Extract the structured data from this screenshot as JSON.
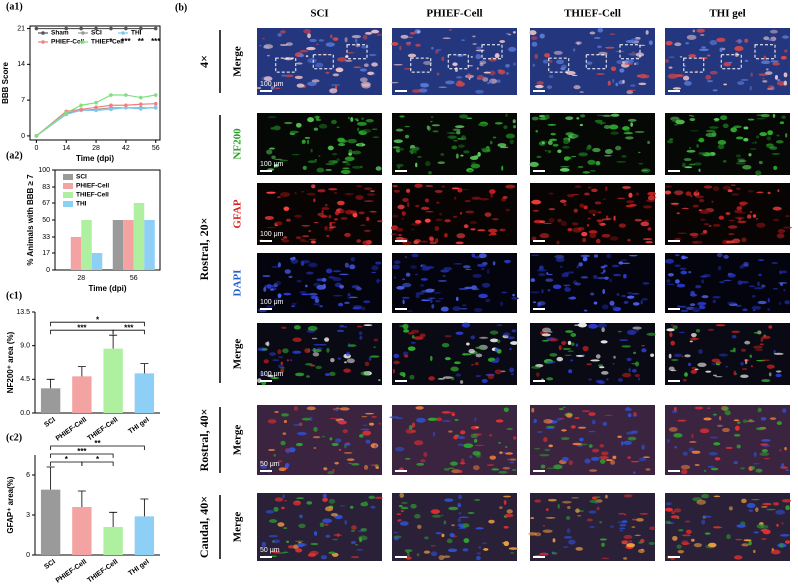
{
  "chart_data": [
    {
      "type": "line",
      "panel": "(a1)",
      "xlabel": "Time (dpi)",
      "ylabel": "BBB Score",
      "x": [
        0,
        14,
        21,
        28,
        35,
        42,
        49,
        56
      ],
      "xlim": [
        -3,
        58
      ],
      "xticks": [
        0,
        14,
        28,
        42,
        56
      ],
      "ylim": [
        -0.8,
        21.5
      ],
      "yticks": [
        0,
        7,
        14,
        21
      ],
      "legend": "inside-top",
      "series": [
        {
          "name": "Sham",
          "color": "#555555",
          "values": [
            21,
            21,
            21,
            21,
            21,
            21,
            21,
            21
          ]
        },
        {
          "name": "SCI",
          "color": "#9a9a9a",
          "values": [
            0,
            4.5,
            5,
            5.2,
            5.5,
            5.5,
            5.5,
            5.5
          ]
        },
        {
          "name": "THI",
          "color": "#7ec8f0",
          "values": [
            0,
            4.2,
            5,
            5,
            5.2,
            5.5,
            5.3,
            5.6
          ]
        },
        {
          "name": "PHIEF-Cell",
          "color": "#f08080",
          "values": [
            0,
            4.8,
            5.2,
            5.6,
            6,
            6,
            6.2,
            6.3
          ]
        },
        {
          "name": "THIEF-Cell",
          "color": "#7fe07f",
          "values": [
            0,
            4.5,
            6,
            6.5,
            8,
            8,
            7.5,
            8
          ]
        }
      ],
      "annotations": [
        {
          "x": 35,
          "text": "*"
        },
        {
          "x": 42,
          "text": "***"
        },
        {
          "x": 49,
          "text": "**"
        },
        {
          "x": 56,
          "text": "***"
        }
      ]
    },
    {
      "type": "bar",
      "panel": "(a2)",
      "xlabel": "Time (dpi)",
      "ylabel": "% Animals with BBB ≥ 7",
      "categories": [
        "28",
        "56"
      ],
      "ylim": [
        0,
        100
      ],
      "yticks": [
        0,
        17,
        33,
        50,
        67,
        83,
        100
      ],
      "legend": "top-left",
      "series": [
        {
          "name": "SCI",
          "color": "#9a9a9a",
          "values": [
            0,
            50
          ]
        },
        {
          "name": "PHIEF-Cell",
          "color": "#f4a3a3",
          "values": [
            33,
            50
          ]
        },
        {
          "name": "THIEF-Cell",
          "color": "#aef0a0",
          "values": [
            50,
            67
          ]
        },
        {
          "name": "THI",
          "color": "#8dcff5",
          "values": [
            17,
            50
          ]
        }
      ]
    },
    {
      "type": "bar",
      "panel": "(c1)",
      "ylabel": "NF200⁺ area (%)",
      "categories": [
        "SCI",
        "PHIEF-Cell",
        "THIEF-Cell",
        "THI gel"
      ],
      "values": [
        3.3,
        4.9,
        8.6,
        5.3
      ],
      "errors": [
        1.2,
        1.3,
        1.8,
        1.3
      ],
      "colors": [
        "#9a9a9a",
        "#f4a3a3",
        "#aef0a0",
        "#8dcff5"
      ],
      "ylim": [
        0,
        13.5
      ],
      "yticks": [
        {
          "value": 0,
          "label": "0.0"
        },
        4.5,
        {
          "value": 9,
          "label": "9.0"
        },
        13.5
      ],
      "annotations": [
        {
          "text": "*",
          "between": [
            "SCI",
            "THI gel"
          ]
        },
        {
          "text": "***",
          "between": [
            "SCI",
            "THIEF-Cell"
          ]
        },
        {
          "text": "***",
          "between": [
            "THIEF-Cell",
            "THI gel"
          ]
        }
      ]
    },
    {
      "type": "bar",
      "panel": "(c2)",
      "ylabel": "GFAP⁺ area(%)",
      "categories": [
        "SCI",
        "PHIEF-Cell",
        "THIEF-Cell",
        "THI gel"
      ],
      "values": [
        4.9,
        3.6,
        2.1,
        2.9
      ],
      "errors": [
        1.7,
        1.2,
        1.1,
        1.3
      ],
      "colors": [
        "#9a9a9a",
        "#f4a3a3",
        "#aef0a0",
        "#8dcff5"
      ],
      "ylim": [
        0,
        7.5
      ],
      "yticks": [
        0,
        3,
        6
      ],
      "annotations": [
        {
          "text": "**",
          "between": [
            "SCI",
            "THI gel"
          ]
        },
        {
          "text": "***",
          "between": [
            "SCI",
            "THIEF-Cell"
          ]
        },
        {
          "text": "*",
          "between": [
            "SCI",
            "PHIEF-Cell"
          ]
        },
        {
          "text": "*",
          "between": [
            "PHIEF-Cell",
            "THIEF-Cell"
          ]
        }
      ]
    }
  ],
  "panel_b": {
    "label": "(b)",
    "columns": [
      "SCI",
      "PHIEF-Cell",
      "THIEF-Cell",
      "THI gel"
    ],
    "row_groups": [
      {
        "label": "4×",
        "rows": [
          {
            "label": "Merge",
            "color": "#000000",
            "scale": "100 μm"
          }
        ]
      },
      {
        "label": "Rostral, 20×",
        "rows": [
          {
            "label": "NF200",
            "color": "#2aa02a",
            "scale": "100 μm"
          },
          {
            "label": "GFAP",
            "color": "#e02020",
            "scale": "100 μm"
          },
          {
            "label": "DAPI",
            "color": "#2060d0",
            "scale": "100 μm"
          },
          {
            "label": "Merge",
            "color": "#000000",
            "scale": "100 μm"
          }
        ]
      },
      {
        "label": "Rostral, 40×",
        "rows": [
          {
            "label": "Merge",
            "color": "#000000",
            "scale": "50 μm"
          }
        ]
      },
      {
        "label": "Caudal, 40×",
        "rows": [
          {
            "label": "Merge",
            "color": "#000000",
            "scale": "50 μm"
          }
        ]
      }
    ]
  }
}
